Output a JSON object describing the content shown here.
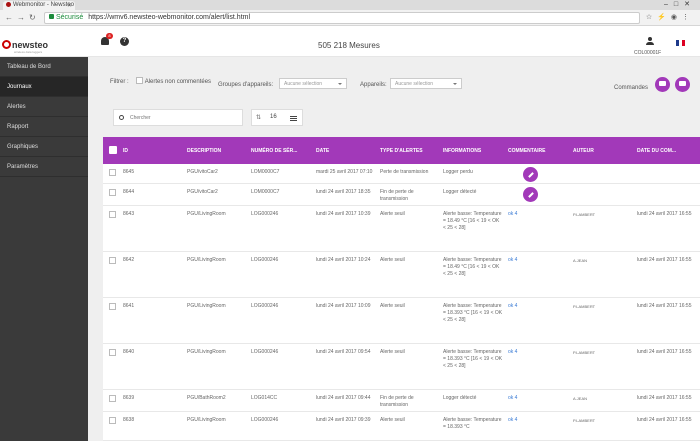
{
  "browser": {
    "tab_title": "Webmonitor - Newsteo",
    "secure_label": "Sécurisé",
    "url": "https://wmv6.newsteo-webmonitor.com/alert/list.html"
  },
  "header": {
    "logo_text": "newsteo",
    "logo_subtitle": "wireless data loggers",
    "notification_count": "8",
    "measures": "505 218 Mesures",
    "user_code": "COL00001F"
  },
  "sidebar": {
    "items": [
      {
        "label": "Tableau de Bord"
      },
      {
        "label": "Journaux"
      },
      {
        "label": "Alertes"
      },
      {
        "label": "Rapport"
      },
      {
        "label": "Graphiques"
      },
      {
        "label": "Paramètres"
      }
    ]
  },
  "filters": {
    "filter_label": "Filtrer :",
    "uncommented_label": "Alertes non commentées",
    "groups_label": "Groupes d'appareils:",
    "groups_value": "Aucune sélection",
    "devices_label": "Appareils:",
    "devices_value": "Aucune sélection",
    "commands_label": "Commandes"
  },
  "search": {
    "placeholder": "Chercher"
  },
  "pager": {
    "page_size": "16"
  },
  "table": {
    "headers": [
      "ID",
      "DESCRIPTION",
      "NUMÉRO DE SÉR...",
      "DATE",
      "TYPE D'ALERTES",
      "INFORMATIONS",
      "COMMENTAIRE",
      "AUTEUR",
      "DATE DU COM..."
    ],
    "rows": [
      {
        "id": "8645",
        "desc": "PGU/vitoCar2",
        "serial": "LOM0000C7",
        "date": "mardi 25 avril 2017 07:10",
        "type": "Perte de transmission",
        "info": "Logger perdu",
        "comment": "",
        "author": "",
        "cdate": ""
      },
      {
        "id": "8644",
        "desc": "PGU/vitoCar2",
        "serial": "LOM0000C7",
        "date": "lundi 24 avril 2017 18:35",
        "type": "Fin de perte de transmission",
        "info": "Logger détecté",
        "comment": "",
        "author": "",
        "cdate": ""
      },
      {
        "id": "8643",
        "desc": "PGU/LivingRoom",
        "serial": "LOG000246",
        "date": "lundi 24 avril 2017 10:39",
        "type": "Alerte seuil",
        "info": "Alerte basse: Temperature = 18.49 °C [16 < 19 < OK < 25 < 28]",
        "comment": "ok 4",
        "author": "P.LAMBERT",
        "cdate": "lundi 24 avril 2017 16:55"
      },
      {
        "id": "8642",
        "desc": "PGU/LivingRoom",
        "serial": "LOG000246",
        "date": "lundi 24 avril 2017 10:24",
        "type": "Alerte seuil",
        "info": "Alerte basse: Temperature = 18.49 °C [16 < 19 < OK < 25 < 28]",
        "comment": "ok 4",
        "author": "A.JEAN",
        "cdate": "lundi 24 avril 2017 16:55"
      },
      {
        "id": "8641",
        "desc": "PGU/LivingRoom",
        "serial": "LOG000246",
        "date": "lundi 24 avril 2017 10:09",
        "type": "Alerte seuil",
        "info": "Alerte basse: Temperature = 18.393 °C [16 < 19 < OK < 25 < 28]",
        "comment": "ok 4",
        "author": "P.LAMBERT",
        "cdate": "lundi 24 avril 2017 16:55"
      },
      {
        "id": "8640",
        "desc": "PGU/LivingRoom",
        "serial": "LOG000246",
        "date": "lundi 24 avril 2017 09:54",
        "type": "Alerte seuil",
        "info": "Alerte basse: Temperature = 18.393 °C [16 < 19 < OK < 25 < 28]",
        "comment": "ok 4",
        "author": "P.LAMBERT",
        "cdate": "lundi 24 avril 2017 16:55"
      },
      {
        "id": "8639",
        "desc": "PGU/BathRoom2",
        "serial": "LOG014CC",
        "date": "lundi 24 avril 2017 09:44",
        "type": "Fin de perte de transmission",
        "info": "Logger détecté",
        "comment": "ok 4",
        "author": "A.JEAN",
        "cdate": "lundi 24 avril 2017 16:55"
      },
      {
        "id": "8638",
        "desc": "PGU/LivingRoom",
        "serial": "LOG000246",
        "date": "lundi 24 avril 2017 09:39",
        "type": "Alerte seuil",
        "info": "Alerte basse: Temperature = 18.393 °C",
        "comment": "ok 4",
        "author": "P.LAMBERT",
        "cdate": "lundi 24 avril 2017 16:55"
      }
    ]
  }
}
